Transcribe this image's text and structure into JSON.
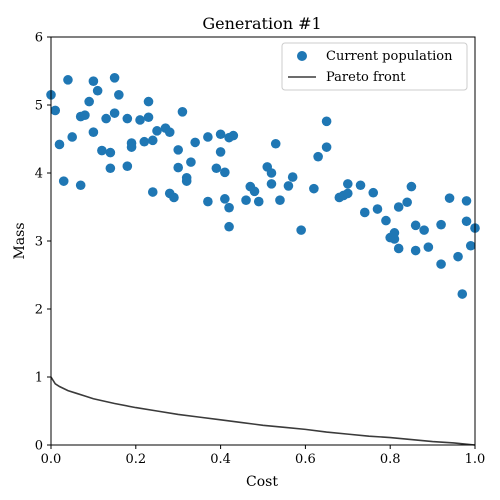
{
  "chart_data": {
    "type": "scatter",
    "title": "Generation #1",
    "xlabel": "Cost",
    "ylabel": "Mass",
    "xlim": [
      0,
      1
    ],
    "ylim": [
      0,
      6
    ],
    "xticks": [
      "0.0",
      "0.2",
      "0.4",
      "0.6",
      "0.8",
      "1.0"
    ],
    "yticks": [
      "0",
      "1",
      "2",
      "3",
      "4",
      "5",
      "6"
    ],
    "grid": false,
    "legend_position": "top-right",
    "colors": {
      "scatter": "#1f77b4",
      "line": "#3b3b3b"
    },
    "series": [
      {
        "name": "Current population",
        "kind": "scatter",
        "points": [
          [
            0.0,
            5.15
          ],
          [
            0.01,
            4.92
          ],
          [
            0.02,
            4.42
          ],
          [
            0.03,
            3.88
          ],
          [
            0.04,
            5.37
          ],
          [
            0.05,
            4.53
          ],
          [
            0.07,
            4.83
          ],
          [
            0.07,
            3.82
          ],
          [
            0.08,
            4.85
          ],
          [
            0.09,
            5.05
          ],
          [
            0.1,
            5.35
          ],
          [
            0.1,
            4.6
          ],
          [
            0.11,
            5.21
          ],
          [
            0.12,
            4.33
          ],
          [
            0.13,
            4.8
          ],
          [
            0.14,
            4.3
          ],
          [
            0.14,
            4.07
          ],
          [
            0.15,
            5.4
          ],
          [
            0.15,
            4.88
          ],
          [
            0.16,
            5.15
          ],
          [
            0.18,
            4.1
          ],
          [
            0.18,
            4.8
          ],
          [
            0.19,
            4.44
          ],
          [
            0.19,
            4.38
          ],
          [
            0.21,
            4.78
          ],
          [
            0.22,
            4.46
          ],
          [
            0.23,
            5.05
          ],
          [
            0.23,
            4.82
          ],
          [
            0.24,
            3.72
          ],
          [
            0.24,
            4.48
          ],
          [
            0.25,
            4.62
          ],
          [
            0.27,
            4.66
          ],
          [
            0.28,
            4.6
          ],
          [
            0.28,
            3.7
          ],
          [
            0.29,
            3.64
          ],
          [
            0.3,
            4.08
          ],
          [
            0.3,
            4.34
          ],
          [
            0.31,
            4.9
          ],
          [
            0.32,
            3.93
          ],
          [
            0.32,
            3.88
          ],
          [
            0.33,
            4.16
          ],
          [
            0.34,
            4.45
          ],
          [
            0.37,
            4.53
          ],
          [
            0.37,
            3.58
          ],
          [
            0.39,
            4.07
          ],
          [
            0.4,
            4.31
          ],
          [
            0.4,
            4.57
          ],
          [
            0.41,
            4.01
          ],
          [
            0.41,
            3.62
          ],
          [
            0.42,
            4.52
          ],
          [
            0.42,
            3.49
          ],
          [
            0.42,
            3.21
          ],
          [
            0.43,
            4.55
          ],
          [
            0.46,
            3.6
          ],
          [
            0.47,
            3.8
          ],
          [
            0.48,
            3.73
          ],
          [
            0.49,
            3.58
          ],
          [
            0.51,
            4.09
          ],
          [
            0.52,
            4.0
          ],
          [
            0.52,
            3.84
          ],
          [
            0.53,
            4.43
          ],
          [
            0.54,
            3.6
          ],
          [
            0.56,
            3.81
          ],
          [
            0.57,
            3.94
          ],
          [
            0.59,
            3.16
          ],
          [
            0.62,
            3.77
          ],
          [
            0.63,
            4.24
          ],
          [
            0.65,
            4.76
          ],
          [
            0.65,
            4.38
          ],
          [
            0.68,
            3.64
          ],
          [
            0.69,
            3.67
          ],
          [
            0.7,
            3.7
          ],
          [
            0.7,
            3.84
          ],
          [
            0.73,
            3.82
          ],
          [
            0.74,
            3.42
          ],
          [
            0.76,
            3.71
          ],
          [
            0.77,
            3.47
          ],
          [
            0.79,
            3.3
          ],
          [
            0.8,
            3.05
          ],
          [
            0.81,
            3.03
          ],
          [
            0.81,
            3.12
          ],
          [
            0.82,
            2.89
          ],
          [
            0.82,
            3.5
          ],
          [
            0.84,
            3.57
          ],
          [
            0.85,
            3.8
          ],
          [
            0.86,
            3.23
          ],
          [
            0.86,
            2.86
          ],
          [
            0.88,
            3.16
          ],
          [
            0.89,
            2.91
          ],
          [
            0.92,
            3.24
          ],
          [
            0.92,
            2.66
          ],
          [
            0.94,
            3.63
          ],
          [
            0.96,
            2.77
          ],
          [
            0.97,
            2.22
          ],
          [
            0.98,
            3.29
          ],
          [
            0.98,
            3.59
          ],
          [
            0.99,
            2.93
          ],
          [
            1.0,
            3.19
          ]
        ]
      },
      {
        "name": "Pareto front",
        "kind": "line",
        "points": [
          [
            0.0,
            1.0
          ],
          [
            0.01,
            0.9
          ],
          [
            0.02,
            0.86
          ],
          [
            0.04,
            0.8
          ],
          [
            0.06,
            0.76
          ],
          [
            0.08,
            0.72
          ],
          [
            0.1,
            0.68
          ],
          [
            0.15,
            0.61
          ],
          [
            0.2,
            0.55
          ],
          [
            0.25,
            0.5
          ],
          [
            0.3,
            0.45
          ],
          [
            0.35,
            0.41
          ],
          [
            0.4,
            0.37
          ],
          [
            0.45,
            0.33
          ],
          [
            0.5,
            0.29
          ],
          [
            0.55,
            0.26
          ],
          [
            0.6,
            0.23
          ],
          [
            0.65,
            0.19
          ],
          [
            0.7,
            0.16
          ],
          [
            0.75,
            0.13
          ],
          [
            0.8,
            0.11
          ],
          [
            0.85,
            0.08
          ],
          [
            0.9,
            0.05
          ],
          [
            0.95,
            0.03
          ],
          [
            1.0,
            0.0
          ]
        ]
      }
    ]
  }
}
